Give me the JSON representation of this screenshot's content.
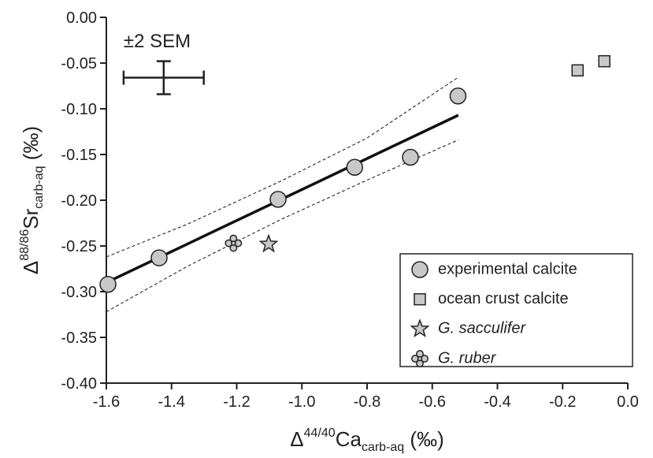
{
  "chart_data": {
    "type": "scatter",
    "xlabel": [
      "Δ",
      "44/40",
      "Ca",
      "carb-aq",
      " (‰)"
    ],
    "ylabel": [
      "Δ",
      "88/86",
      "Sr",
      "carb-aq",
      " (‰)"
    ],
    "xlim": [
      -1.6,
      0
    ],
    "ylim": [
      -0.4,
      0
    ],
    "xticks": [
      -1.6,
      -1.4,
      -1.2,
      {
        "value": -1.0,
        "label": "-1.0"
      },
      -0.8,
      -0.6,
      -0.4,
      -0.2,
      {
        "value": 0,
        "label": "0.0"
      }
    ],
    "yticks": [
      {
        "value": 0,
        "label": "0.00"
      },
      -0.05,
      {
        "value": -0.1,
        "label": "-0.10"
      },
      -0.15,
      {
        "value": -0.2,
        "label": "-0.20"
      },
      -0.25,
      {
        "value": -0.3,
        "label": "-0.30"
      },
      -0.35,
      {
        "value": -0.4,
        "label": "-0.40"
      }
    ],
    "series": [
      {
        "name": "experimental calcite",
        "marker": "circle",
        "color": "#c8c8c8",
        "label_style": "normal",
        "x": [
          -1.595,
          -1.438,
          -1.073,
          -0.838,
          -0.667,
          -0.521
        ],
        "values": [
          -0.292,
          -0.263,
          -0.199,
          -0.164,
          -0.153,
          -0.086
        ]
      },
      {
        "name": "ocean crust calcite",
        "marker": "square",
        "color": "#c8c8c8",
        "label_style": "normal",
        "x": [
          -0.154,
          -0.072
        ],
        "values": [
          -0.058,
          -0.048
        ]
      },
      {
        "name": "G. sacculifer",
        "marker": "star",
        "color": "#c8c8c8",
        "label_style": "italic",
        "x": [
          -1.102
        ],
        "values": [
          -0.248
        ]
      },
      {
        "name": "G. ruber",
        "marker": "flower",
        "color": "#c8c8c8",
        "label_style": "italic",
        "x": [
          -1.21
        ],
        "values": [
          -0.247
        ]
      }
    ],
    "lines": [
      {
        "style": "solid",
        "x": [
          -1.6,
          -0.52
        ],
        "values": [
          -0.29,
          -0.107
        ]
      },
      {
        "style": "dashed",
        "x": [
          -1.6,
          -1.35,
          -1.07,
          -0.8,
          -0.52
        ],
        "values": [
          -0.262,
          -0.226,
          -0.18,
          -0.132,
          -0.0655
        ]
      },
      {
        "style": "dashed",
        "x": [
          -1.6,
          -1.35,
          -1.07,
          -0.8,
          -0.52
        ],
        "values": [
          -0.322,
          -0.272,
          -0.222,
          -0.178,
          -0.134
        ]
      }
    ],
    "error_bar": {
      "label": "±2 SEM",
      "x": -1.424,
      "y": -0.066,
      "xerr": 0.123,
      "yerr": 0.018
    },
    "legend": "lower right"
  }
}
